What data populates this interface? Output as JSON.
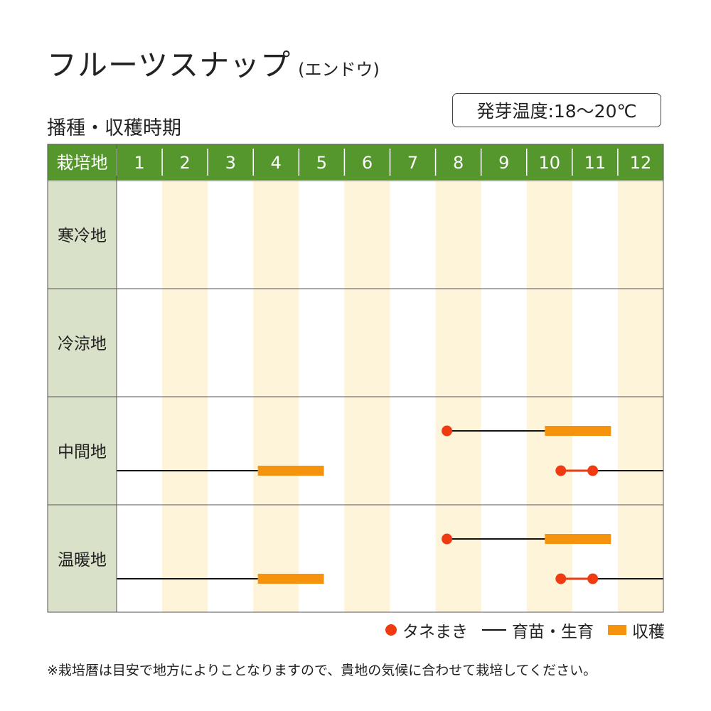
{
  "header": {
    "title": "フルーツスナップ",
    "title_sub": "(エンドウ)",
    "subtitle": "播種・収穫時期",
    "germination_temp": "発芽温度:18〜20℃"
  },
  "chart_data": {
    "type": "gantt",
    "corner_label": "栽培地",
    "months": [
      "1",
      "2",
      "3",
      "4",
      "5",
      "6",
      "7",
      "8",
      "9",
      "10",
      "11",
      "12"
    ],
    "regions": [
      {
        "name": "寒冷地",
        "rows": []
      },
      {
        "name": "冷涼地",
        "rows": []
      },
      {
        "name": "中間地",
        "rows": [
          {
            "sow": [
              8.25
            ],
            "grow": [
              [
                8.25,
                10.4
              ]
            ],
            "harvest": [
              [
                10.4,
                11.85
              ]
            ]
          },
          {
            "sow": [
              10.75,
              11.45
            ],
            "grow": [
              [
                1.0,
                4.1
              ],
              [
                10.75,
                13.0
              ]
            ],
            "harvest": [
              [
                4.1,
                5.55
              ]
            ]
          }
        ]
      },
      {
        "name": "温暖地",
        "rows": [
          {
            "sow": [
              8.25
            ],
            "grow": [
              [
                8.25,
                10.4
              ]
            ],
            "harvest": [
              [
                10.4,
                11.85
              ]
            ]
          },
          {
            "sow": [
              10.75,
              11.45
            ],
            "grow": [
              [
                1.0,
                4.1
              ],
              [
                10.75,
                13.0
              ]
            ],
            "harvest": [
              [
                4.1,
                5.55
              ]
            ]
          }
        ]
      }
    ],
    "colors": {
      "header_bg": "#56972d",
      "region_bg": "#d9e2c8",
      "alt_column": "#fdf4d9",
      "sow": "#ef3a12",
      "grow": "#111111",
      "harvest": "#f5930f"
    }
  },
  "legend": {
    "sow": "タネまき",
    "grow": "育苗・生育",
    "harvest": "収穫"
  },
  "footnote": "※栽培暦は目安で地方によりことなりますので、貴地の気候に合わせて栽培してください。"
}
